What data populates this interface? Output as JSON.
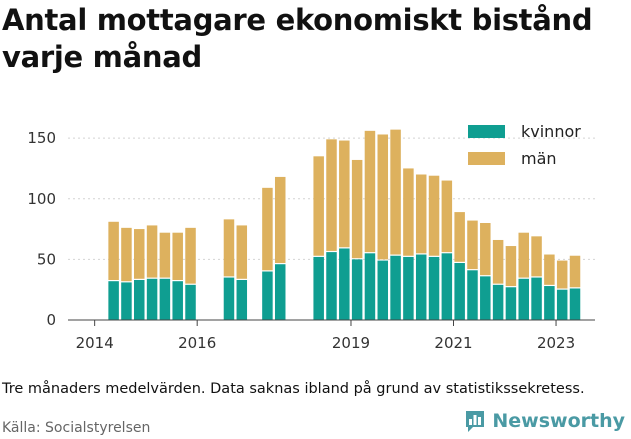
{
  "title": "Antal mottagare ekonomiskt bistånd varje månad",
  "note": "Tre månaders medelvärden. Data saknas ibland på grund av statistikssekretess.",
  "source": "Källa: Socialstyrelsen",
  "brand": {
    "name": "Newsworthy",
    "icon": "bar-chart-logo-icon",
    "color": "#4a9aa4"
  },
  "chart_data": {
    "type": "bar",
    "stacked": true,
    "x_unit": "year",
    "x_ticks": [
      2014,
      2016,
      2019,
      2021,
      2023
    ],
    "y_ticks": [
      0,
      50,
      100,
      150
    ],
    "xlim": [
      2013.48,
      2023.76
    ],
    "ylim": [
      0,
      160
    ],
    "grid": true,
    "legend_position": "top-right",
    "series": [
      {
        "name": "kvinnor",
        "color": "#0f9e91"
      },
      {
        "name": "män",
        "color": "#ddb15e"
      }
    ],
    "data": [
      {
        "x": 2014.37,
        "kvinnor": 32,
        "män": 49
      },
      {
        "x": 2014.62,
        "kvinnor": 31,
        "män": 45
      },
      {
        "x": 2014.87,
        "kvinnor": 33,
        "män": 42
      },
      {
        "x": 2015.12,
        "kvinnor": 34,
        "män": 44
      },
      {
        "x": 2015.37,
        "kvinnor": 34,
        "män": 38
      },
      {
        "x": 2015.62,
        "kvinnor": 32,
        "män": 40
      },
      {
        "x": 2015.87,
        "kvinnor": 29,
        "män": 47
      },
      {
        "x": 2016.62,
        "kvinnor": 35,
        "män": 48
      },
      {
        "x": 2016.87,
        "kvinnor": 33,
        "män": 45
      },
      {
        "x": 2017.37,
        "kvinnor": 40,
        "män": 69
      },
      {
        "x": 2017.62,
        "kvinnor": 46,
        "män": 72
      },
      {
        "x": 2018.37,
        "kvinnor": 52,
        "män": 83
      },
      {
        "x": 2018.62,
        "kvinnor": 56,
        "män": 93
      },
      {
        "x": 2018.87,
        "kvinnor": 59,
        "män": 89
      },
      {
        "x": 2019.12,
        "kvinnor": 50,
        "män": 82
      },
      {
        "x": 2019.37,
        "kvinnor": 55,
        "män": 101
      },
      {
        "x": 2019.62,
        "kvinnor": 49,
        "män": 104
      },
      {
        "x": 2019.87,
        "kvinnor": 53,
        "män": 104
      },
      {
        "x": 2020.12,
        "kvinnor": 52,
        "män": 73
      },
      {
        "x": 2020.37,
        "kvinnor": 54,
        "män": 66
      },
      {
        "x": 2020.62,
        "kvinnor": 52,
        "män": 67
      },
      {
        "x": 2020.87,
        "kvinnor": 55,
        "män": 60
      },
      {
        "x": 2021.12,
        "kvinnor": 47,
        "män": 42
      },
      {
        "x": 2021.37,
        "kvinnor": 41,
        "män": 41
      },
      {
        "x": 2021.62,
        "kvinnor": 36,
        "män": 44
      },
      {
        "x": 2021.87,
        "kvinnor": 29,
        "män": 37
      },
      {
        "x": 2022.12,
        "kvinnor": 27,
        "män": 34
      },
      {
        "x": 2022.37,
        "kvinnor": 34,
        "män": 38
      },
      {
        "x": 2022.62,
        "kvinnor": 35,
        "män": 34
      },
      {
        "x": 2022.87,
        "kvinnor": 28,
        "män": 26
      },
      {
        "x": 2023.12,
        "kvinnor": 25,
        "män": 24
      },
      {
        "x": 2023.37,
        "kvinnor": 26,
        "män": 27
      }
    ]
  }
}
